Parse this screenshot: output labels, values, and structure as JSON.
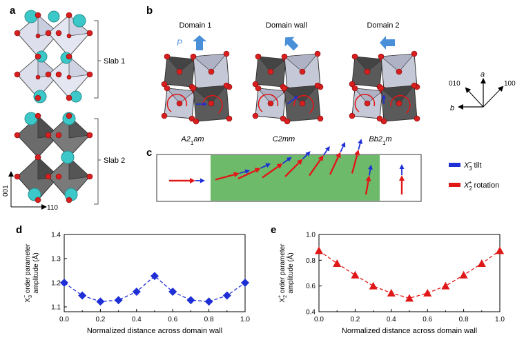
{
  "panels": {
    "a": {
      "letter": "a",
      "slab1_label": "Slab 1",
      "slab2_label": "Slab 2",
      "axis_vertical": "001",
      "axis_horizontal": "110"
    },
    "b": {
      "letter": "b",
      "polarization_label": "P",
      "domains": [
        {
          "title": "Domain 1",
          "space_group_base": "A2",
          "space_group_sub": "1",
          "space_group_tail": "am",
          "arrow_angle_deg": 90
        },
        {
          "title": "Domain wall",
          "space_group_base": "C2mm",
          "space_group_sub": "",
          "space_group_tail": "",
          "arrow_angle_deg": 135
        },
        {
          "title": "Domain 2",
          "space_group_base": "Bb2",
          "space_group_sub": "1",
          "space_group_tail": "m",
          "arrow_angle_deg": 180
        }
      ],
      "axes": {
        "a": "a",
        "d010": "010",
        "d100": "100",
        "b": "b"
      }
    },
    "c": {
      "letter": "c",
      "legend": [
        {
          "base": "X",
          "sub": "3",
          "sup": "−",
          "suffix": " tilt",
          "color": "#1f2fd6"
        },
        {
          "base": "X",
          "sub": "2",
          "sup": "+",
          "suffix": " rotation",
          "color": "#e01818"
        }
      ],
      "wall_color": "#6dbb6a",
      "arrow_angles_deg": [
        0,
        15,
        25,
        35,
        45,
        55,
        65,
        75,
        80,
        90
      ]
    },
    "d": {
      "letter": "d"
    },
    "e": {
      "letter": "e"
    }
  },
  "chart_data": [
    {
      "type": "line",
      "panel": "d",
      "title": "",
      "xlabel": "Normalized distance across domain wall",
      "ylabel_line1": "X",
      "ylabel_sub": "3",
      "ylabel_sup": "−",
      "ylabel_rest": " order parameter",
      "ylabel_line2": "amplitude (Å)",
      "xlim": [
        0.0,
        1.0
      ],
      "ylim": [
        1.08,
        1.4
      ],
      "xticks": [
        "0.0",
        "0.2",
        "0.4",
        "0.6",
        "0.8",
        "1.0"
      ],
      "yticks": [
        "1.1",
        "1.2",
        "1.3",
        "1.4"
      ],
      "marker": "diamond",
      "color": "#1f2fd6",
      "series": [
        {
          "x": [
            0.0,
            0.1,
            0.2,
            0.3,
            0.4,
            0.5,
            0.6,
            0.7,
            0.8,
            0.9,
            1.0
          ],
          "values": [
            1.2,
            1.147,
            1.122,
            1.128,
            1.163,
            1.228,
            1.163,
            1.128,
            1.122,
            1.147,
            1.2
          ]
        }
      ]
    },
    {
      "type": "line",
      "panel": "e",
      "title": "",
      "xlabel": "Normalized distance across domain wall",
      "ylabel_line1": "X",
      "ylabel_sub": "2",
      "ylabel_sup": "+",
      "ylabel_rest": " order parameter",
      "ylabel_line2": "amplitude (Å)",
      "xlim": [
        0.0,
        1.0
      ],
      "ylim": [
        0.4,
        1.0
      ],
      "xticks": [
        "0.0",
        "0.2",
        "0.4",
        "0.6",
        "0.8",
        "1.0"
      ],
      "yticks": [
        "0.4",
        "0.6",
        "0.8",
        "1.0"
      ],
      "marker": "triangle",
      "color": "#e01818",
      "series": [
        {
          "x": [
            0.0,
            0.1,
            0.2,
            0.3,
            0.4,
            0.5,
            0.6,
            0.7,
            0.8,
            0.9,
            1.0
          ],
          "values": [
            0.875,
            0.775,
            0.685,
            0.6,
            0.545,
            0.505,
            0.545,
            0.6,
            0.685,
            0.775,
            0.875
          ]
        }
      ]
    }
  ]
}
